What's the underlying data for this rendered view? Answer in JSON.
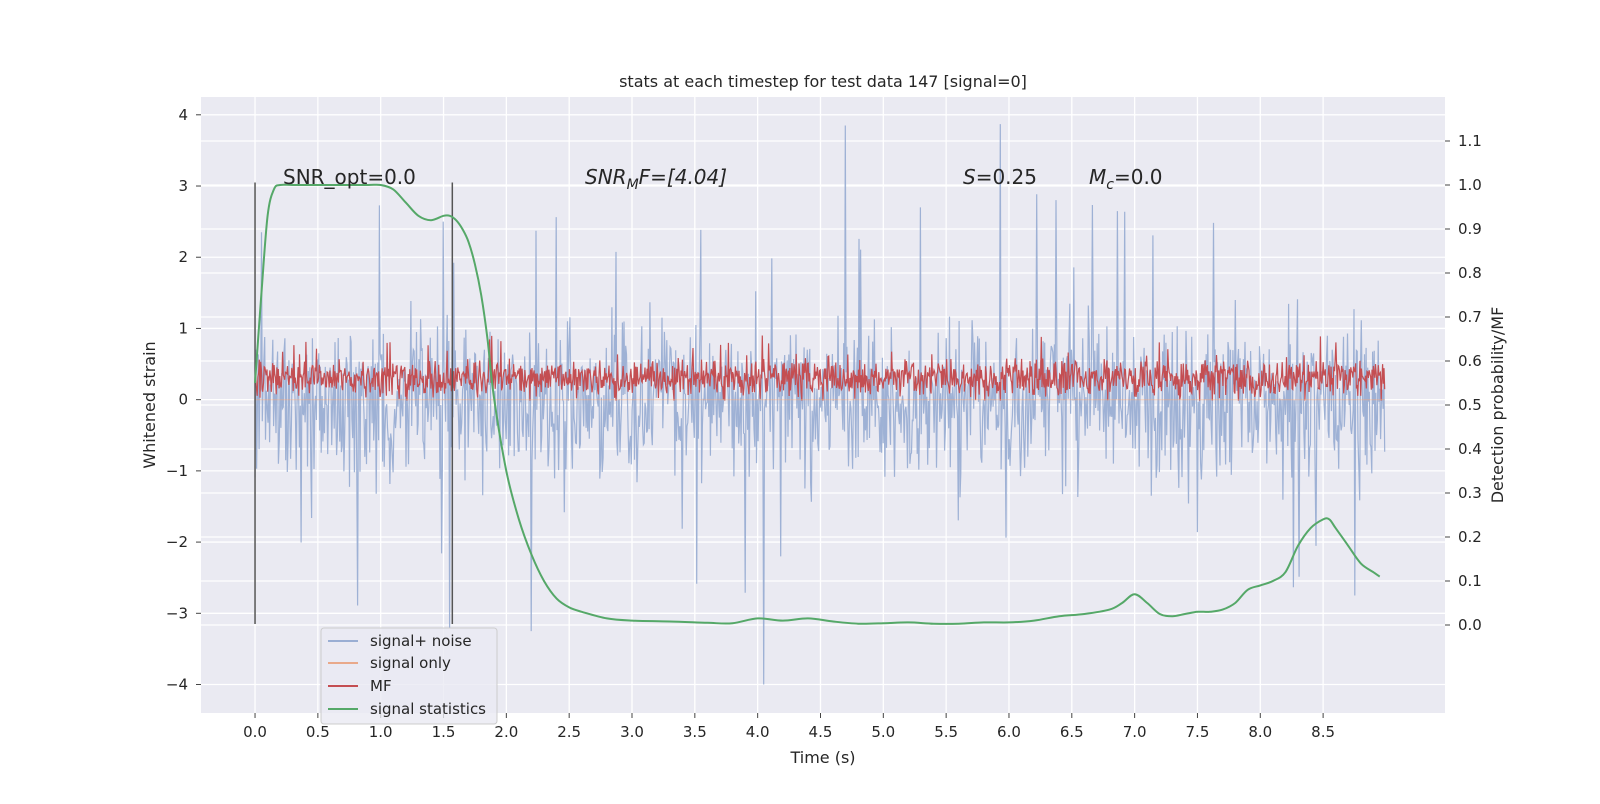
{
  "chart_data": {
    "type": "line",
    "title": "stats at each timestep for test data 147 [signal=0]",
    "xlabel": "Time (s)",
    "ylabel": "Whitened strain",
    "y2label": "Detection probability/MF",
    "xlim": [
      -0.43,
      9.47
    ],
    "ylim": [
      -4.4,
      4.25
    ],
    "y2lim": [
      -0.2,
      1.2
    ],
    "xticks": [
      "0.0",
      "0.5",
      "1.0",
      "1.5",
      "2.0",
      "2.5",
      "3.0",
      "3.5",
      "4.0",
      "4.5",
      "5.0",
      "5.5",
      "6.0",
      "6.5",
      "7.0",
      "7.5",
      "8.0",
      "8.5"
    ],
    "yticks": [
      "4",
      "3",
      "2",
      "1",
      "0",
      "−1",
      "−2",
      "−3",
      "−4"
    ],
    "y2ticks": [
      "1.1",
      "1.0",
      "0.9",
      "0.8",
      "0.7",
      "0.6",
      "0.5",
      "0.4",
      "0.3",
      "0.2",
      "0.1",
      "0.0"
    ],
    "vlines_x": [
      0.0,
      1.57
    ],
    "vlines_yrange": [
      -3.15,
      3.05
    ],
    "annotations": {
      "snr_opt": "SNR_opt=0.0",
      "snr_mf_prefix": "SNR",
      "snr_mf_sub": "M",
      "snr_mf_suffix": "F=[4.04]",
      "s_prefix": "S",
      "s_suffix": "=0.25",
      "mc_prefix": "M",
      "mc_sub": "c",
      "mc_suffix": "=0.0"
    },
    "legend": {
      "location": "lower-left",
      "entries": [
        {
          "label": "signal+ noise",
          "color": "#9aaed3"
        },
        {
          "label": "signal only",
          "color": "#e9a98a"
        },
        {
          "label": "MF",
          "color": "#c44e52"
        },
        {
          "label": "signal statistics",
          "color": "#55a868"
        }
      ]
    },
    "series": [
      {
        "name": "signal+ noise",
        "axis": "left",
        "style": "noise",
        "x_range": [
          0.0,
          8.99
        ],
        "typical_range": [
          -1.5,
          1.5
        ],
        "peak_range": [
          -3.3,
          3.9
        ],
        "notable_peaks": [
          {
            "x": 0.05,
            "y": 2.35
          },
          {
            "x": 1.5,
            "y": 2.5
          },
          {
            "x": 1.55,
            "y": -3.2
          },
          {
            "x": 2.2,
            "y": -3.25
          },
          {
            "x": 4.05,
            "y": -4.0
          },
          {
            "x": 4.7,
            "y": 3.85
          },
          {
            "x": 5.93,
            "y": 3.87
          },
          {
            "x": 8.75,
            "y": -2.75
          }
        ],
        "color": "#9aaed3"
      },
      {
        "name": "signal only",
        "axis": "left",
        "x": [
          0.0,
          8.99
        ],
        "y": [
          0.0,
          0.0
        ],
        "color": "#e9a98a"
      },
      {
        "name": "MF",
        "axis": "right",
        "style": "noise",
        "x_range": [
          0.0,
          8.99
        ],
        "typical_range": [
          0.52,
          0.6
        ],
        "peak_range": [
          0.51,
          0.66
        ],
        "color": "#c44e52"
      },
      {
        "name": "signal statistics",
        "axis": "right",
        "color": "#55a868",
        "x": [
          0.0,
          0.05,
          0.1,
          0.15,
          0.2,
          0.3,
          0.5,
          0.7,
          0.9,
          1.0,
          1.1,
          1.2,
          1.3,
          1.4,
          1.5,
          1.55,
          1.6,
          1.65,
          1.7,
          1.75,
          1.8,
          1.85,
          1.9,
          2.0,
          2.1,
          2.2,
          2.3,
          2.4,
          2.5,
          2.6,
          2.8,
          3.0,
          3.3,
          3.6,
          3.8,
          4.0,
          4.2,
          4.4,
          4.6,
          4.8,
          5.0,
          5.2,
          5.4,
          5.6,
          5.8,
          6.0,
          6.2,
          6.4,
          6.6,
          6.8,
          6.9,
          7.0,
          7.1,
          7.2,
          7.3,
          7.4,
          7.5,
          7.6,
          7.7,
          7.8,
          7.9,
          8.0,
          8.1,
          8.2,
          8.3,
          8.4,
          8.5,
          8.55,
          8.6,
          8.7,
          8.8,
          8.9,
          8.95
        ],
        "y": [
          0.55,
          0.75,
          0.93,
          0.99,
          1.0,
          1.0,
          1.0,
          1.0,
          1.0,
          1.0,
          0.99,
          0.96,
          0.93,
          0.92,
          0.93,
          0.93,
          0.92,
          0.9,
          0.87,
          0.82,
          0.75,
          0.65,
          0.52,
          0.35,
          0.24,
          0.16,
          0.1,
          0.06,
          0.04,
          0.03,
          0.015,
          0.01,
          0.008,
          0.005,
          0.004,
          0.015,
          0.01,
          0.015,
          0.008,
          0.003,
          0.004,
          0.006,
          0.003,
          0.003,
          0.006,
          0.006,
          0.01,
          0.02,
          0.025,
          0.035,
          0.05,
          0.07,
          0.05,
          0.025,
          0.02,
          0.025,
          0.03,
          0.03,
          0.035,
          0.05,
          0.08,
          0.09,
          0.1,
          0.12,
          0.18,
          0.22,
          0.24,
          0.24,
          0.22,
          0.18,
          0.14,
          0.12,
          0.11
        ]
      }
    ]
  }
}
